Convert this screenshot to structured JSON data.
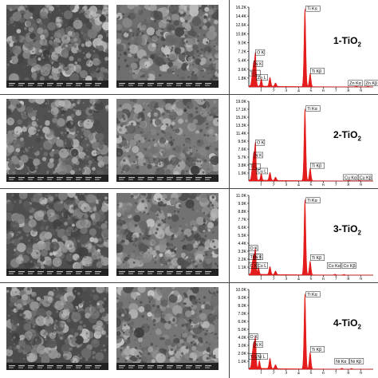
{
  "figure": {
    "panels": [
      {
        "label_base": "1-TiO",
        "label_sub": "2",
        "sem_seed": 11,
        "sem_tone": "#4a4a4a",
        "sem_tone2": "#6e6e6e",
        "chart_data": {
          "type": "line",
          "title": "",
          "xlabel": "",
          "ylabel": "",
          "xlim": [
            0,
            10
          ],
          "ylim": [
            0,
            16200
          ],
          "x_ticks": [
            "1",
            "2",
            "3",
            "4",
            "5",
            "6",
            "7",
            "8",
            "9"
          ],
          "y_ticks": [
            "1.8K",
            "3.6K",
            "5.4K",
            "7.2K",
            "9.0K",
            "10.8K",
            "12.6K",
            "14.4K",
            "16.2K"
          ],
          "peaks": [
            {
              "x": 0.27,
              "y": 1900
            },
            {
              "x": 0.39,
              "y": 4200
            },
            {
              "x": 0.53,
              "y": 6500
            },
            {
              "x": 1.0,
              "y": 1500
            },
            {
              "x": 1.7,
              "y": 1800
            },
            {
              "x": 2.15,
              "y": 700
            },
            {
              "x": 4.51,
              "y": 16000
            },
            {
              "x": 4.93,
              "y": 2700
            },
            {
              "x": 8.64,
              "y": 150
            },
            {
              "x": 9.57,
              "y": 120
            }
          ],
          "peak_labels": [
            {
              "text": "O K",
              "x": 0.55,
              "y": 6700
            },
            {
              "text": "N K",
              "x": 0.4,
              "y": 4400
            },
            {
              "text": "Ti L",
              "x": 0.0,
              "y": 2500
            },
            {
              "text": "Zn L",
              "x": 0.6,
              "y": 1600
            },
            {
              "text": "Ti Kα",
              "x": 4.6,
              "y": 15600
            },
            {
              "text": "Ti Kβ",
              "x": 4.95,
              "y": 2900
            },
            {
              "text": "Zn Kα",
              "x": 8.0,
              "y": 450
            },
            {
              "text": "Zn Kβ",
              "x": 9.3,
              "y": 450
            }
          ],
          "color": "#e41b1b"
        }
      },
      {
        "label_base": "2-TiO",
        "label_sub": "2",
        "sem_seed": 23,
        "sem_tone": "#525252",
        "sem_tone2": "#7a7a7a",
        "chart_data": {
          "type": "line",
          "title": "",
          "xlabel": "",
          "ylabel": "",
          "xlim": [
            0,
            10
          ],
          "ylim": [
            0,
            19000
          ],
          "x_ticks": [
            "1",
            "2",
            "3",
            "4",
            "5",
            "6",
            "7",
            "8",
            "9"
          ],
          "y_ticks": [
            "1.9K",
            "3.8K",
            "5.7K",
            "7.6K",
            "9.5K",
            "11.4K",
            "13.3K",
            "15.2K",
            "17.1K",
            "19.0K"
          ],
          "peaks": [
            {
              "x": 0.27,
              "y": 2400
            },
            {
              "x": 0.39,
              "y": 5600
            },
            {
              "x": 0.53,
              "y": 8600
            },
            {
              "x": 1.0,
              "y": 1600
            },
            {
              "x": 1.7,
              "y": 1900
            },
            {
              "x": 2.15,
              "y": 800
            },
            {
              "x": 4.51,
              "y": 17300
            },
            {
              "x": 4.93,
              "y": 3000
            },
            {
              "x": 8.05,
              "y": 160
            },
            {
              "x": 8.9,
              "y": 120
            }
          ],
          "peak_labels": [
            {
              "text": "O K",
              "x": 0.55,
              "y": 8800
            },
            {
              "text": "N K",
              "x": 0.4,
              "y": 5800
            },
            {
              "text": "Ti L",
              "x": 0.0,
              "y": 3100
            },
            {
              "text": "Cu L",
              "x": 0.6,
              "y": 2000
            },
            {
              "text": "Ti Kα",
              "x": 4.6,
              "y": 16900
            },
            {
              "text": "Ti Kβ",
              "x": 4.95,
              "y": 3300
            },
            {
              "text": "Cu Kα",
              "x": 7.6,
              "y": 500
            },
            {
              "text": "Cu Kβ",
              "x": 8.8,
              "y": 500
            }
          ],
          "color": "#e41b1b"
        }
      },
      {
        "label_base": "3-TiO",
        "label_sub": "2",
        "sem_seed": 37,
        "sem_tone": "#4e4e4e",
        "sem_tone2": "#727272",
        "chart_data": {
          "type": "line",
          "title": "",
          "xlabel": "",
          "ylabel": "",
          "xlim": [
            0,
            10
          ],
          "ylim": [
            0,
            11000
          ],
          "x_ticks": [
            "1",
            "2",
            "3",
            "4",
            "5",
            "6",
            "7",
            "8",
            "9"
          ],
          "y_ticks": [
            "1.1K",
            "2.2K",
            "3.3K",
            "4.4K",
            "5.5K",
            "6.6K",
            "7.7K",
            "8.8K",
            "9.9K",
            "11.0K"
          ],
          "peaks": [
            {
              "x": 0.27,
              "y": 1300
            },
            {
              "x": 0.39,
              "y": 2300
            },
            {
              "x": 0.53,
              "y": 3400
            },
            {
              "x": 0.78,
              "y": 900
            },
            {
              "x": 1.7,
              "y": 1100
            },
            {
              "x": 2.15,
              "y": 500
            },
            {
              "x": 4.51,
              "y": 10500
            },
            {
              "x": 4.93,
              "y": 1900
            },
            {
              "x": 6.93,
              "y": 110
            },
            {
              "x": 7.65,
              "y": 90
            }
          ],
          "peak_labels": [
            {
              "text": "O K",
              "x": 0.0,
              "y": 3500
            },
            {
              "text": "N K",
              "x": 0.4,
              "y": 2300
            },
            {
              "text": "Ti L",
              "x": 0.0,
              "y": 2300
            },
            {
              "text": "C K",
              "x": 0.0,
              "y": 1100
            },
            {
              "text": "Co L",
              "x": 0.6,
              "y": 1100
            },
            {
              "text": "Ti Kα",
              "x": 4.6,
              "y": 10100
            },
            {
              "text": "Ti Kβ",
              "x": 4.95,
              "y": 2200
            },
            {
              "text": "Co Kα",
              "x": 6.3,
              "y": 1100
            },
            {
              "text": "Co Kβ",
              "x": 7.5,
              "y": 1100
            }
          ],
          "color": "#e41b1b"
        }
      },
      {
        "label_base": "4-TiO",
        "label_sub": "2",
        "sem_seed": 53,
        "sem_tone": "#4c4c4c",
        "sem_tone2": "#767676",
        "chart_data": {
          "type": "line",
          "title": "",
          "xlabel": "",
          "ylabel": "",
          "xlim": [
            0,
            10
          ],
          "ylim": [
            0,
            10000
          ],
          "x_ticks": [
            "1",
            "2",
            "3",
            "4",
            "5",
            "6",
            "7",
            "8",
            "9"
          ],
          "y_ticks": [
            "1.0K",
            "2.0K",
            "3.0K",
            "4.0K",
            "5.0K",
            "6.0K",
            "7.0K",
            "8.0K",
            "9.0K",
            "10.0K"
          ],
          "peaks": [
            {
              "x": 0.27,
              "y": 1500
            },
            {
              "x": 0.39,
              "y": 2800
            },
            {
              "x": 0.53,
              "y": 3800
            },
            {
              "x": 0.85,
              "y": 1000
            },
            {
              "x": 1.7,
              "y": 1300
            },
            {
              "x": 2.15,
              "y": 500
            },
            {
              "x": 4.51,
              "y": 9500
            },
            {
              "x": 4.93,
              "y": 2100
            },
            {
              "x": 7.48,
              "y": 110
            },
            {
              "x": 8.26,
              "y": 90
            }
          ],
          "peak_labels": [
            {
              "text": "O K",
              "x": 0.0,
              "y": 3900
            },
            {
              "text": "N K",
              "x": 0.4,
              "y": 2900
            },
            {
              "text": "Ti L",
              "x": 0.0,
              "y": 1400
            },
            {
              "text": "Ni L",
              "x": 0.6,
              "y": 1400
            },
            {
              "text": "Ti Kα",
              "x": 4.6,
              "y": 9200
            },
            {
              "text": "Ti Kβ",
              "x": 4.95,
              "y": 2300
            },
            {
              "text": "Ni Kα",
              "x": 6.9,
              "y": 800
            },
            {
              "text": "Ni Kβ",
              "x": 8.1,
              "y": 800
            }
          ],
          "color": "#e41b1b"
        }
      }
    ]
  }
}
